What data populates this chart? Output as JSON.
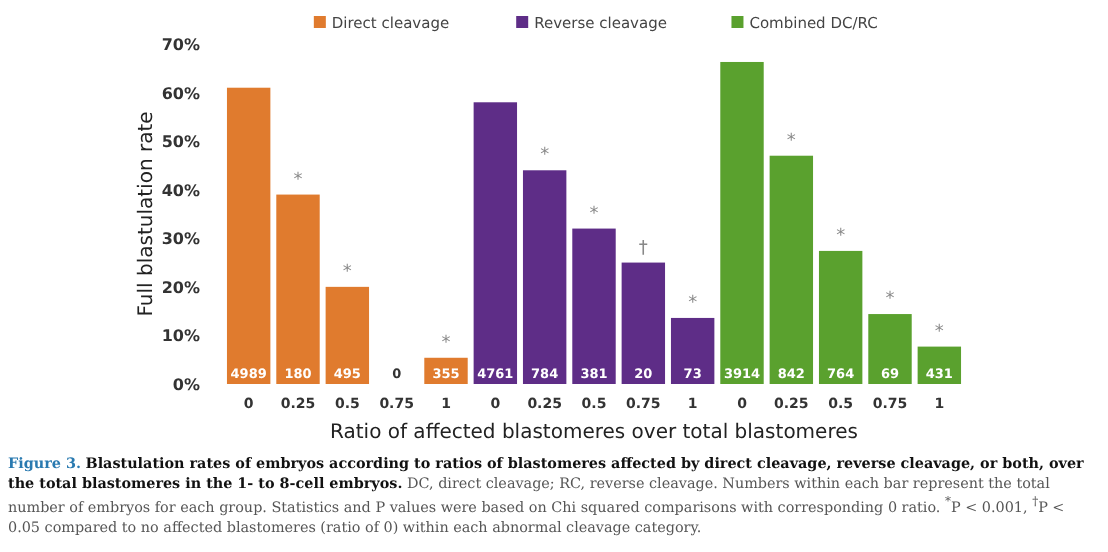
{
  "chart_data": [
    {
      "type": "bar",
      "ylabel": "Full blastulation rate",
      "categories": [
        "0",
        "0.25",
        "0.5",
        "0.75",
        "1"
      ],
      "series": [
        {
          "name": "Direct cleavage",
          "color": "#e07b2e",
          "values": [
            61,
            39,
            20,
            0,
            5.4
          ]
        }
      ],
      "ylim": [
        0,
        70
      ],
      "yticks": [
        {
          "value": 0,
          "label": "0%"
        },
        {
          "value": 10,
          "label": "10%"
        },
        {
          "value": 20,
          "label": "20%"
        },
        {
          "value": 30,
          "label": "30%"
        },
        {
          "value": 40,
          "label": "40%"
        },
        {
          "value": 50,
          "label": "50%"
        },
        {
          "value": 60,
          "label": "60%"
        },
        {
          "value": 70,
          "label": "70%"
        }
      ],
      "legend": "top",
      "annotations": [
        {
          "text": "*",
          "x": "0.25",
          "y": 39
        },
        {
          "text": "*",
          "x": "0.5",
          "y": 20
        },
        {
          "text": "*",
          "x": "1",
          "y": 5.4
        },
        "4989",
        "180",
        "495",
        "0",
        "355"
      ]
    },
    {
      "type": "bar",
      "xlabel": "Ratio of affected blastomeres over total blastomeres",
      "categories": [
        "0",
        "0.25",
        "0.5",
        "0.75",
        "1"
      ],
      "series": [
        {
          "name": "Reverse cleavage",
          "color": "#5e2d87",
          "values": [
            58,
            44,
            32,
            25,
            13.6
          ]
        }
      ],
      "ylim": [
        0,
        70
      ],
      "tick_labels": "x",
      "legend": "top",
      "annotations": [
        {
          "text": "*",
          "x": "0.25",
          "y": 44
        },
        {
          "text": "*",
          "x": "0.5",
          "y": 32
        },
        {
          "text": "†",
          "x": "0.75",
          "y": 25
        },
        {
          "text": "*",
          "x": "1",
          "y": 13.6
        },
        "4761",
        "784",
        "381",
        "20",
        "73"
      ]
    },
    {
      "type": "bar",
      "categories": [
        "0",
        "0.25",
        "0.5",
        "0.75",
        "1"
      ],
      "series": [
        {
          "name": "Combined DC/RC",
          "color": "#5aa12e",
          "values": [
            66.3,
            47,
            27.4,
            14.4,
            7.7
          ]
        }
      ],
      "ylim": [
        0,
        70
      ],
      "tick_labels": "x",
      "legend": "top",
      "annotations": [
        {
          "text": "*",
          "x": "0.25",
          "y": 47
        },
        {
          "text": "*",
          "x": "0.5",
          "y": 27.4
        },
        {
          "text": "*",
          "x": "0.75",
          "y": 14.4
        },
        {
          "text": "*",
          "x": "1",
          "y": 7.7
        },
        "3914",
        "842",
        "764",
        "69",
        "431",
        "Figure 3.",
        "Blastulation rates of embryos according to ratios of blastomeres affected by direct cleavage, reverse cleavage, or both, over the total blastomeres in the 1- to 8-cell embryos.",
        "DC, direct cleavage; RC, reverse cleavage. Numbers within each bar represent the total number of embryos for each group. Statistics and P values were based on Chi squared comparisons with corresponding 0 ratio. $^{*}$P < 0.001, $^{†}$P < 0.05 compared to no affected blastomeres (ratio of 0) within each abnormal cleavage category."
      ]
    }
  ]
}
